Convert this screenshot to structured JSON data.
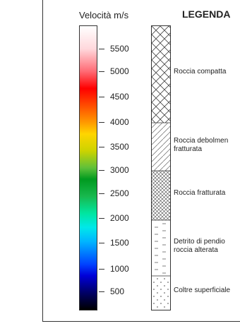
{
  "colorbar": {
    "title": "Velocità m/s",
    "ticks": [
      "5500",
      "5000",
      "4500",
      "4000",
      "3500",
      "3000",
      "2500",
      "2000",
      "1500",
      "1000",
      "500"
    ]
  },
  "legend": {
    "title": "LEGENDA",
    "layers": [
      {
        "name": "Roccia compatta",
        "pattern": "cross-hatch"
      },
      {
        "name": "Roccia debolmente fratturata",
        "line1": "Roccia debolmen",
        "line2": "fratturata",
        "pattern": "diagonal-hatch"
      },
      {
        "name": "Roccia fratturata",
        "pattern": "dense-cross-hatch"
      },
      {
        "name": "Detrito di pendio e roccia alterata",
        "line1": "Detrito di  pendio",
        "line2": "roccia alterata",
        "pattern": "dashes"
      },
      {
        "name": "Coltre superficiale",
        "pattern": "dots"
      }
    ]
  }
}
